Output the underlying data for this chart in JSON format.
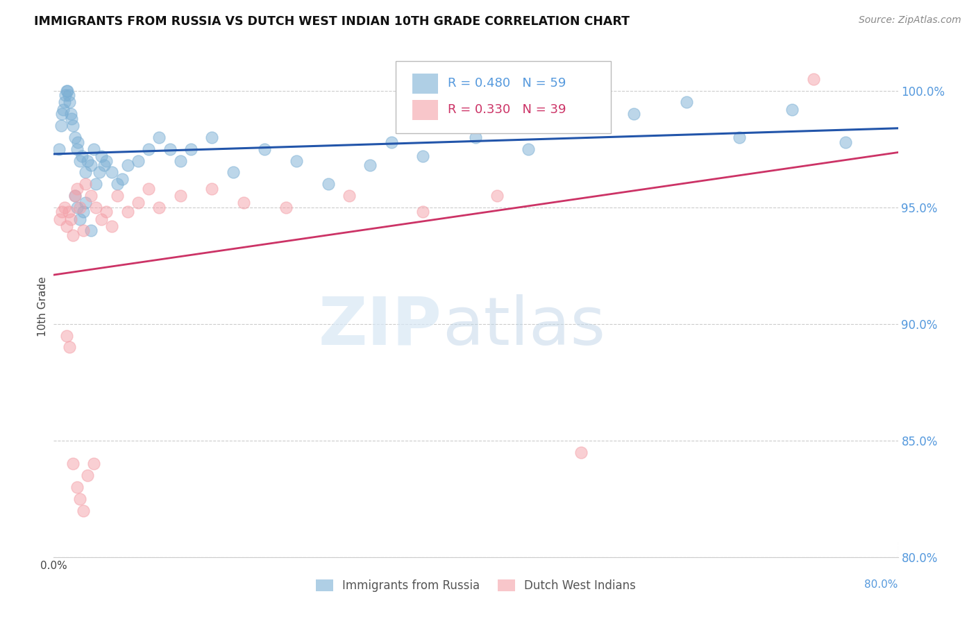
{
  "title": "IMMIGRANTS FROM RUSSIA VS DUTCH WEST INDIAN 10TH GRADE CORRELATION CHART",
  "source": "Source: ZipAtlas.com",
  "ylabel": "10th Grade",
  "legend_label1": "Immigrants from Russia",
  "legend_label2": "Dutch West Indians",
  "R1": 0.48,
  "N1": 59,
  "R2": 0.33,
  "N2": 39,
  "xlim": [
    0.0,
    8.0
  ],
  "ylim": [
    80.0,
    101.5
  ],
  "x_ticks": [
    0.0
  ],
  "y_ticks_right": [
    80.0,
    85.0,
    90.0,
    95.0,
    100.0
  ],
  "color_blue": "#7BAFD4",
  "color_pink": "#F4A0A8",
  "color_blue_line": "#2255AA",
  "color_pink_line": "#CC3366",
  "color_right_axis": "#5599DD",
  "blue_x": [
    0.05,
    0.07,
    0.08,
    0.09,
    0.1,
    0.11,
    0.12,
    0.13,
    0.14,
    0.15,
    0.16,
    0.17,
    0.18,
    0.2,
    0.22,
    0.23,
    0.25,
    0.27,
    0.3,
    0.32,
    0.35,
    0.38,
    0.4,
    0.43,
    0.45,
    0.48,
    0.5,
    0.55,
    0.6,
    0.65,
    0.7,
    0.8,
    0.9,
    1.0,
    1.1,
    1.2,
    1.3,
    1.5,
    1.7,
    2.0,
    2.3,
    2.6,
    3.0,
    3.5,
    4.0,
    4.5,
    5.0,
    5.5,
    6.0,
    6.5,
    7.0,
    7.5,
    0.2,
    0.22,
    0.25,
    0.28,
    0.3,
    0.35,
    3.2
  ],
  "blue_y": [
    97.5,
    98.5,
    99.0,
    99.2,
    99.5,
    99.8,
    100.0,
    100.0,
    99.8,
    99.5,
    99.0,
    98.8,
    98.5,
    98.0,
    97.5,
    97.8,
    97.0,
    97.2,
    96.5,
    97.0,
    96.8,
    97.5,
    96.0,
    96.5,
    97.2,
    96.8,
    97.0,
    96.5,
    96.0,
    96.2,
    96.8,
    97.0,
    97.5,
    98.0,
    97.5,
    97.0,
    97.5,
    98.0,
    96.5,
    97.5,
    97.0,
    96.0,
    96.8,
    97.2,
    98.0,
    97.5,
    98.5,
    99.0,
    99.5,
    98.0,
    99.2,
    97.8,
    95.5,
    95.0,
    94.5,
    94.8,
    95.2,
    94.0,
    97.8
  ],
  "pink_x": [
    0.06,
    0.08,
    0.1,
    0.12,
    0.14,
    0.16,
    0.18,
    0.2,
    0.22,
    0.25,
    0.28,
    0.3,
    0.35,
    0.4,
    0.45,
    0.5,
    0.55,
    0.6,
    0.7,
    0.8,
    0.9,
    1.0,
    1.2,
    1.5,
    1.8,
    2.2,
    2.8,
    3.5,
    4.2,
    5.0,
    0.12,
    0.15,
    0.18,
    0.22,
    0.25,
    0.28,
    0.32,
    0.38,
    7.2
  ],
  "pink_y": [
    94.5,
    94.8,
    95.0,
    94.2,
    94.8,
    94.5,
    93.8,
    95.5,
    95.8,
    95.0,
    94.0,
    96.0,
    95.5,
    95.0,
    94.5,
    94.8,
    94.2,
    95.5,
    94.8,
    95.2,
    95.8,
    95.0,
    95.5,
    95.8,
    95.2,
    95.0,
    95.5,
    94.8,
    95.5,
    84.5,
    89.5,
    89.0,
    84.0,
    83.0,
    82.5,
    82.0,
    83.5,
    84.0,
    100.5
  ]
}
